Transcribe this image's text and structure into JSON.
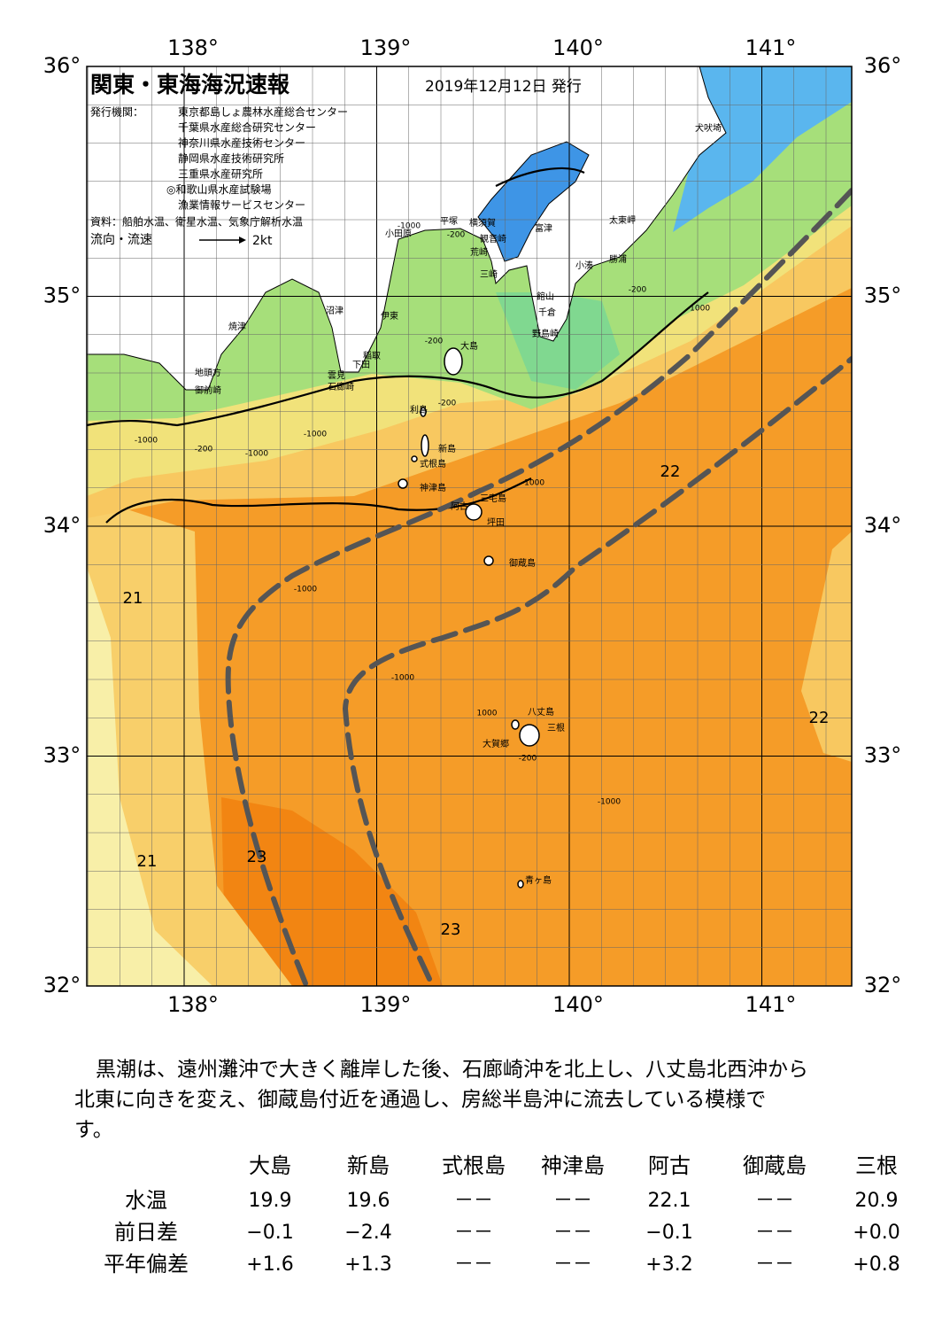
{
  "header": {
    "title": "関東・東海海況速報",
    "date": "2019年12月12日 発行",
    "publisher_label": "発行機関：",
    "publishers": [
      "東京都島しょ農林水産総合センター",
      "千葉県水産総合研究センター",
      "神奈川県水産技術センター",
      "静岡県水産技術研究所",
      "三重県水産研究所",
      "◎和歌山県水産試験場",
      "漁業情報サービスセンター"
    ],
    "source": "資料：船舶水温、衛星水温、気象庁解析水温",
    "flow_label": "流向・流速",
    "flow_scale": "2kt"
  },
  "map": {
    "lon_labels": [
      "138°",
      "139°",
      "140°",
      "141°"
    ],
    "lat_labels": [
      "36°",
      "35°",
      "34°",
      "33°",
      "32°"
    ],
    "places": [
      "小田原",
      "平塚",
      "横須賀",
      "観音崎",
      "富津",
      "荒崎",
      "三崎",
      "太東岬",
      "犬吠埼",
      "小湊",
      "勝浦",
      "館山",
      "千倉",
      "野島崎",
      "沼津",
      "伊東",
      "焼津",
      "稲取",
      "下田",
      "雲見",
      "石廊崎",
      "地頭方",
      "御前崎",
      "大島",
      "利島",
      "新島",
      "式根島",
      "神津島",
      "三宅島",
      "阿古",
      "坪田",
      "御蔵島",
      "八丈島",
      "三根",
      "大賀郷",
      "青ヶ島"
    ],
    "temp_labels": [
      "21",
      "21",
      "22",
      "22",
      "23",
      "23"
    ],
    "depth_labels": [
      "-1000",
      "-200",
      "-1000",
      "-1000",
      "-200",
      "-200",
      "-1000",
      "-1000",
      "-1000",
      "1000",
      "-200",
      "-1000",
      "-1000",
      "-200",
      "-200",
      "-1000"
    ]
  },
  "text": {
    "lines": [
      "黒潮は、遠州灘沖で大きく離岸した後、石廊崎沖を北上し、八丈島北西沖から",
      "北東に向きを変え、御蔵島付近を通過し、房総半島沖に流去している模様で",
      "す。"
    ]
  },
  "table": {
    "columns": [
      "大島",
      "新島",
      "式根島",
      "神津島",
      "阿古",
      "御蔵島",
      "三根"
    ],
    "rows": [
      {
        "label": "水温",
        "cells": [
          "19.9",
          "19.6",
          "－－",
          "－－",
          "22.1",
          "－－",
          "20.9"
        ]
      },
      {
        "label": "前日差",
        "cells": [
          "−0.1",
          "−2.4",
          "－－",
          "－－",
          "−0.1",
          "－－",
          "+0.0"
        ]
      },
      {
        "label": "平年偏差",
        "cells": [
          "+1.6",
          "+1.3",
          "－－",
          "－－",
          "+3.2",
          "－－",
          "+0.8"
        ]
      }
    ]
  }
}
